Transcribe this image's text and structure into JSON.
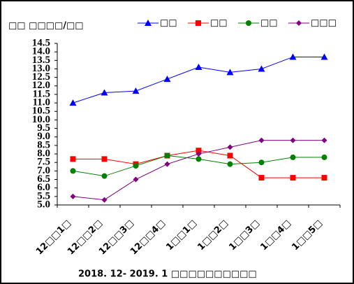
{
  "chart_data": {
    "type": "line",
    "title": "□□ □□□□/□□",
    "xlabel": "2018. 12- 2019. 1 □□□□□□□□□□",
    "categories": [
      "12□□1□",
      "12□□2□",
      "12□□3□",
      "12□□4□",
      "1□□1□",
      "1□□2□",
      "1□□3□",
      "1□□4□",
      "1□□5□"
    ],
    "series": [
      {
        "name": "□□",
        "color": "#0000ff",
        "marker": "triangle",
        "values": [
          11.0,
          11.6,
          11.7,
          12.4,
          13.1,
          12.8,
          13.0,
          13.7,
          13.7
        ]
      },
      {
        "name": "□□",
        "color": "#ff0000",
        "marker": "square",
        "values": [
          7.7,
          7.7,
          7.4,
          7.9,
          8.2,
          7.9,
          6.6,
          6.6,
          6.6
        ]
      },
      {
        "name": "□□",
        "color": "#008000",
        "marker": "circle",
        "values": [
          7.0,
          6.7,
          7.3,
          7.9,
          7.7,
          7.4,
          7.5,
          7.8,
          7.8
        ]
      },
      {
        "name": "□□□",
        "color": "#800080",
        "marker": "diamond",
        "values": [
          5.5,
          5.3,
          6.5,
          7.4,
          8.0,
          8.4,
          8.8,
          8.8,
          8.8
        ]
      }
    ],
    "ylim": [
      5.0,
      14.5
    ],
    "yticks": [
      {
        "value": 5,
        "label": "5.0"
      },
      5.5,
      {
        "value": 6,
        "label": "6.0"
      },
      6.5,
      {
        "value": 7,
        "label": "7.0"
      },
      7.5,
      {
        "value": 8,
        "label": "8.0"
      },
      8.5,
      {
        "value": 9,
        "label": "9.0"
      },
      9.5,
      {
        "value": 10,
        "label": "10.0"
      },
      10.5,
      {
        "value": 11,
        "label": "11.0"
      },
      11.5,
      {
        "value": 12,
        "label": "12.0"
      },
      12.5,
      {
        "value": 13,
        "label": "13.0"
      },
      13.5,
      {
        "value": 14,
        "label": "14.0"
      },
      14.5
    ],
    "grid": false
  }
}
